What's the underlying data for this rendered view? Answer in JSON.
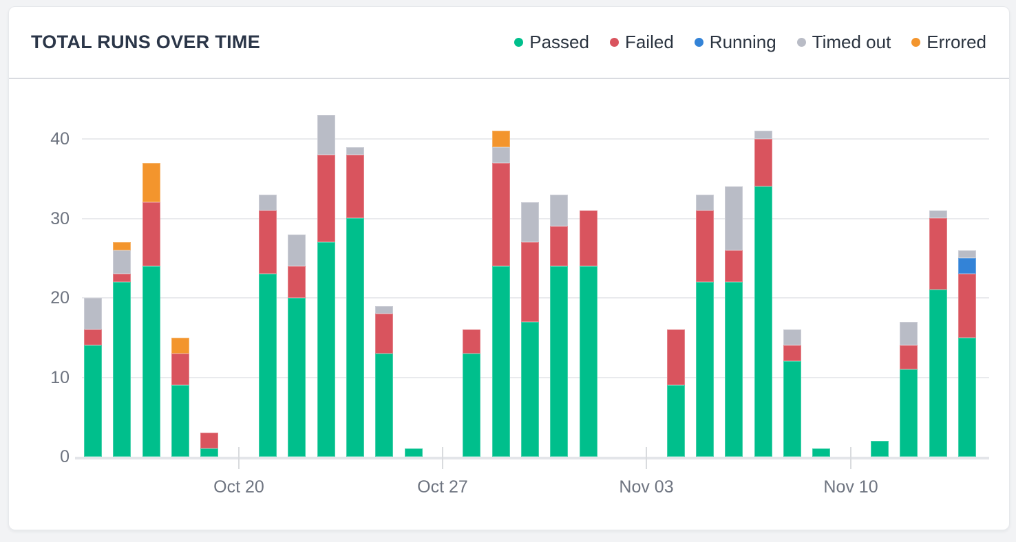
{
  "theme": {
    "page_bg": "#f2f3f5",
    "card_bg": "#ffffff",
    "card_border": "#e7e9ec",
    "header_divider": "#d9dbe0",
    "grid_color": "#e9eaed",
    "axis_line_color": "#e3e5e9",
    "axis_text_color": "#6e7480",
    "title_color": "#2b3648"
  },
  "chart_data": {
    "type": "bar",
    "variant": "stacked",
    "title": "TOTAL RUNS OVER TIME",
    "legend_position": "top-right",
    "grid": "horizontal",
    "ylim": [
      0,
      44
    ],
    "y_ticks": [
      0,
      10,
      20,
      30,
      40
    ],
    "slot_count": 31,
    "x_ticks": [
      {
        "label": "Oct 20",
        "slot": 5
      },
      {
        "label": "Oct 27",
        "slot": 12
      },
      {
        "label": "Nov 03",
        "slot": 19
      },
      {
        "label": "Nov 10",
        "slot": 26
      }
    ],
    "series_keys": [
      "passed",
      "failed",
      "running",
      "timed_out",
      "errored"
    ],
    "legend": [
      {
        "key": "passed",
        "label": "Passed",
        "color": "#00bf8c"
      },
      {
        "key": "failed",
        "label": "Failed",
        "color": "#d9545e"
      },
      {
        "key": "running",
        "label": "Running",
        "color": "#3383d7"
      },
      {
        "key": "timed_out",
        "label": "Timed out",
        "color": "#b9bcc6"
      },
      {
        "key": "errored",
        "label": "Errored",
        "color": "#f3952d"
      }
    ],
    "bars": [
      {
        "slot": 0,
        "passed": 14,
        "failed": 2,
        "running": 0,
        "timed_out": 4,
        "errored": 0
      },
      {
        "slot": 1,
        "passed": 22,
        "failed": 1,
        "running": 0,
        "timed_out": 3,
        "errored": 1
      },
      {
        "slot": 2,
        "passed": 24,
        "failed": 8,
        "running": 0,
        "timed_out": 0,
        "errored": 5
      },
      {
        "slot": 3,
        "passed": 9,
        "failed": 4,
        "running": 0,
        "timed_out": 0,
        "errored": 2
      },
      {
        "slot": 4,
        "passed": 1,
        "failed": 2,
        "running": 0,
        "timed_out": 0,
        "errored": 0
      },
      {
        "slot": 6,
        "passed": 23,
        "failed": 8,
        "running": 0,
        "timed_out": 2,
        "errored": 0
      },
      {
        "slot": 7,
        "passed": 20,
        "failed": 4,
        "running": 0,
        "timed_out": 4,
        "errored": 0
      },
      {
        "slot": 8,
        "passed": 27,
        "failed": 11,
        "running": 0,
        "timed_out": 5,
        "errored": 0
      },
      {
        "slot": 9,
        "passed": 30,
        "failed": 8,
        "running": 0,
        "timed_out": 1,
        "errored": 0
      },
      {
        "slot": 10,
        "passed": 13,
        "failed": 5,
        "running": 0,
        "timed_out": 1,
        "errored": 0
      },
      {
        "slot": 11,
        "passed": 1,
        "failed": 0,
        "running": 0,
        "timed_out": 0,
        "errored": 0
      },
      {
        "slot": 13,
        "passed": 13,
        "failed": 3,
        "running": 0,
        "timed_out": 0,
        "errored": 0
      },
      {
        "slot": 14,
        "passed": 24,
        "failed": 13,
        "running": 0,
        "timed_out": 2,
        "errored": 2
      },
      {
        "slot": 15,
        "passed": 17,
        "failed": 10,
        "running": 0,
        "timed_out": 5,
        "errored": 0
      },
      {
        "slot": 16,
        "passed": 24,
        "failed": 5,
        "running": 0,
        "timed_out": 4,
        "errored": 0
      },
      {
        "slot": 17,
        "passed": 24,
        "failed": 7,
        "running": 0,
        "timed_out": 0,
        "errored": 0
      },
      {
        "slot": 20,
        "passed": 9,
        "failed": 7,
        "running": 0,
        "timed_out": 0,
        "errored": 0
      },
      {
        "slot": 21,
        "passed": 22,
        "failed": 9,
        "running": 0,
        "timed_out": 2,
        "errored": 0
      },
      {
        "slot": 22,
        "passed": 22,
        "failed": 4,
        "running": 0,
        "timed_out": 8,
        "errored": 0
      },
      {
        "slot": 23,
        "passed": 34,
        "failed": 6,
        "running": 0,
        "timed_out": 1,
        "errored": 0
      },
      {
        "slot": 24,
        "passed": 12,
        "failed": 2,
        "running": 0,
        "timed_out": 2,
        "errored": 0
      },
      {
        "slot": 25,
        "passed": 1,
        "failed": 0,
        "running": 0,
        "timed_out": 0,
        "errored": 0
      },
      {
        "slot": 27,
        "passed": 2,
        "failed": 0,
        "running": 0,
        "timed_out": 0,
        "errored": 0
      },
      {
        "slot": 28,
        "passed": 11,
        "failed": 3,
        "running": 0,
        "timed_out": 3,
        "errored": 0
      },
      {
        "slot": 29,
        "passed": 21,
        "failed": 9,
        "running": 0,
        "timed_out": 1,
        "errored": 0
      },
      {
        "slot": 30,
        "passed": 15,
        "failed": 8,
        "running": 2,
        "timed_out": 1,
        "errored": 0
      }
    ]
  }
}
